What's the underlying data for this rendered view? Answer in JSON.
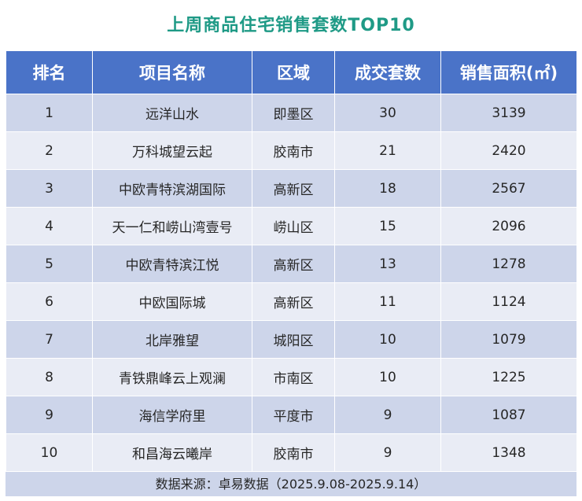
{
  "title": "上周商品住宅销售套数TOP10",
  "colors": {
    "title": "#1f9a86",
    "header_bg": "#4a73c8",
    "row_odd": "#cdd5ea",
    "row_even": "#e9ecf5"
  },
  "chart_data": {
    "type": "table",
    "title": "上周商品住宅销售套数TOP10",
    "columns": [
      "排名",
      "项目名称",
      "区域",
      "成交套数",
      "销售面积(㎡)"
    ],
    "rows": [
      [
        "1",
        "远洋山水",
        "即墨区",
        "30",
        "3139"
      ],
      [
        "2",
        "万科城望云起",
        "胶南市",
        "21",
        "2420"
      ],
      [
        "3",
        "中欧青特滨湖国际",
        "高新区",
        "18",
        "2567"
      ],
      [
        "4",
        "天一仁和崂山湾壹号",
        "崂山区",
        "15",
        "2096"
      ],
      [
        "5",
        "中欧青特滨江悦",
        "高新区",
        "13",
        "1278"
      ],
      [
        "6",
        "中欧国际城",
        "高新区",
        "11",
        "1124"
      ],
      [
        "7",
        "北岸雅望",
        "城阳区",
        "10",
        "1079"
      ],
      [
        "8",
        "青铁鼎峰云上观澜",
        "市南区",
        "10",
        "1225"
      ],
      [
        "9",
        "海信学府里",
        "平度市",
        "9",
        "1087"
      ],
      [
        "10",
        "和昌海云曦岸",
        "胶南市",
        "9",
        "1348"
      ]
    ],
    "source": "数据来源：卓易数据（2025.9.08-2025.9.14）"
  }
}
